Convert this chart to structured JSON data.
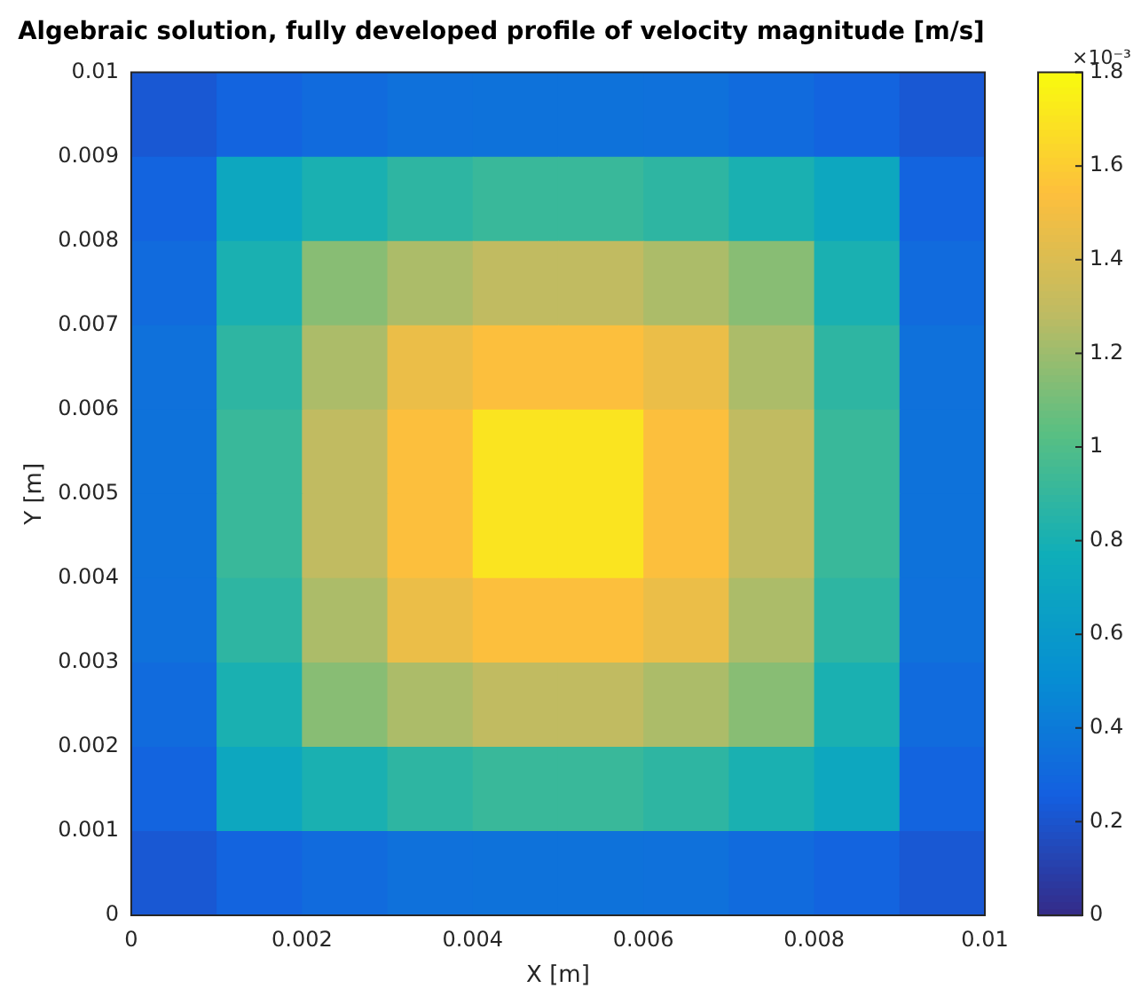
{
  "chart_data": {
    "type": "heatmap",
    "title": "Algebraic solution, fully developed profile of velocity magnitude [m/s]",
    "xlabel": "X [m]",
    "ylabel": "Y [m]",
    "clabel": "×10⁻³",
    "x": [
      0.0005,
      0.0015,
      0.0025,
      0.0035,
      0.0045,
      0.0055,
      0.0065,
      0.0075,
      0.0085,
      0.0095
    ],
    "xlim": [
      0,
      0.01
    ],
    "ylim": [
      0,
      0.01
    ],
    "xticks": [
      0,
      0.002,
      0.004,
      0.006,
      0.008,
      0.01
    ],
    "yticks": [
      0,
      0.001,
      0.002,
      0.003,
      0.004,
      0.005,
      0.006,
      0.007,
      0.008,
      0.009,
      0.01
    ],
    "clim": [
      0,
      1.8
    ],
    "cticks": [
      0,
      0.2,
      0.4,
      0.6,
      0.8,
      1,
      1.2,
      1.4,
      1.6,
      1.8
    ],
    "cells": [
      [
        0.22,
        0.28,
        0.32,
        0.35,
        0.36,
        0.36,
        0.35,
        0.32,
        0.28,
        0.22
      ],
      [
        0.28,
        0.71,
        0.81,
        0.88,
        0.92,
        0.92,
        0.88,
        0.81,
        0.71,
        0.28
      ],
      [
        0.32,
        0.81,
        1.15,
        1.24,
        1.3,
        1.3,
        1.24,
        1.15,
        0.81,
        0.32
      ],
      [
        0.35,
        0.88,
        1.24,
        1.47,
        1.54,
        1.54,
        1.47,
        1.24,
        0.88,
        0.35
      ],
      [
        0.36,
        0.92,
        1.3,
        1.54,
        1.7,
        1.7,
        1.54,
        1.3,
        0.92,
        0.36
      ],
      [
        0.36,
        0.92,
        1.3,
        1.54,
        1.7,
        1.7,
        1.54,
        1.3,
        0.92,
        0.36
      ],
      [
        0.35,
        0.88,
        1.24,
        1.47,
        1.54,
        1.54,
        1.47,
        1.24,
        0.88,
        0.35
      ],
      [
        0.32,
        0.81,
        1.15,
        1.24,
        1.3,
        1.3,
        1.24,
        1.15,
        0.81,
        0.32
      ],
      [
        0.28,
        0.71,
        0.81,
        0.88,
        0.92,
        0.92,
        0.88,
        0.81,
        0.71,
        0.28
      ],
      [
        0.22,
        0.28,
        0.32,
        0.35,
        0.36,
        0.36,
        0.35,
        0.32,
        0.28,
        0.22
      ]
    ]
  }
}
